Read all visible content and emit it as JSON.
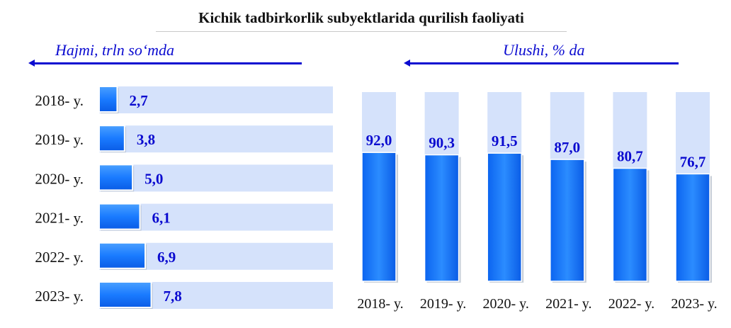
{
  "title": "Kichik tadbirkorlik subyektlarida qurilish faoliyati",
  "colors": {
    "accent": "#0b0bd0",
    "bar": "#1478ff",
    "track": "#d5e2fb",
    "value_text": "#0a0acf"
  },
  "chart_data": [
    {
      "type": "bar",
      "orientation": "horizontal",
      "title": "Hajmi, trln so‘mda",
      "categories": [
        "2018- y.",
        "2019- y.",
        "2020- y.",
        "2021- y.",
        "2022- y.",
        "2023- y."
      ],
      "values": [
        2.7,
        3.8,
        5.0,
        6.1,
        6.9,
        7.8
      ],
      "value_labels": [
        "2,7",
        "3,8",
        "5,0",
        "6,1",
        "6,9",
        "7,8"
      ],
      "xlim": [
        0,
        35
      ],
      "grid": false,
      "background_track": true
    },
    {
      "type": "bar",
      "orientation": "vertical",
      "title": "Ulushi, % da",
      "categories": [
        "2018- y.",
        "2019- y.",
        "2020- y.",
        "2021- y.",
        "2022- y.",
        "2023- y."
      ],
      "values": [
        92.0,
        90.3,
        91.5,
        87.0,
        80.7,
        76.7
      ],
      "value_labels": [
        "92,0",
        "90,3",
        "91,5",
        "87,0",
        "80,7",
        "76,7"
      ],
      "ylim": [
        0,
        100
      ],
      "grid": false,
      "background_track": true
    }
  ]
}
